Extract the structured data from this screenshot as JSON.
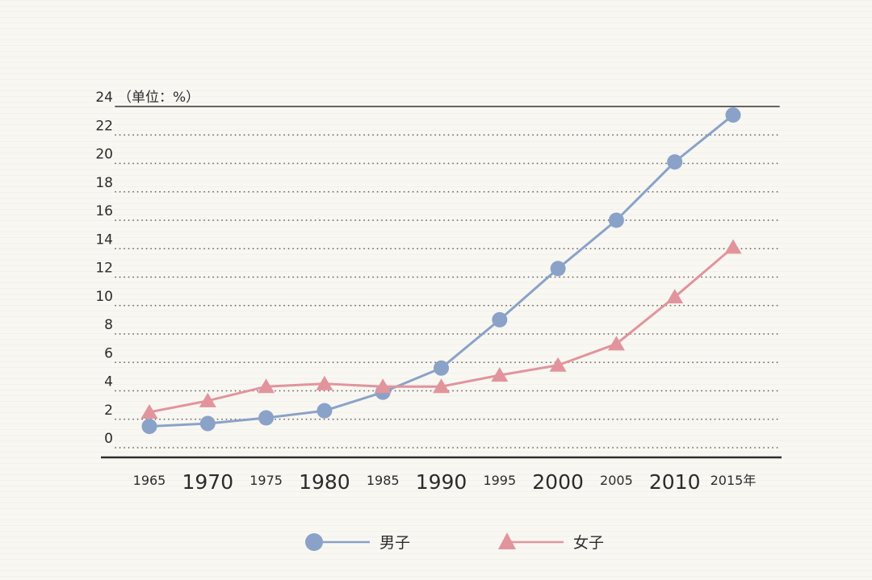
{
  "chart_data": {
    "type": "line",
    "title": "",
    "unit_label": "（单位：%）",
    "ylim": [
      0,
      24
    ],
    "y_tick_step": 2,
    "y_tick_labels": [
      "0",
      "2",
      "4",
      "6",
      "8",
      "10",
      "12",
      "14",
      "16",
      "18",
      "20",
      "22",
      "24"
    ],
    "categories": [
      "1965",
      "1970",
      "1975",
      "1980",
      "1985",
      "1990",
      "1995",
      "2000",
      "2005",
      "2010",
      "2015年"
    ],
    "series": [
      {
        "name": "男子",
        "marker": "circle",
        "color": "#8aa2c8",
        "values": [
          1.5,
          1.7,
          2.1,
          2.6,
          3.9,
          5.6,
          9.0,
          12.6,
          16.0,
          20.1,
          23.4
        ]
      },
      {
        "name": "女子",
        "marker": "triangle",
        "color": "#e2949c",
        "values": [
          2.5,
          3.3,
          4.3,
          4.5,
          4.3,
          4.3,
          5.1,
          5.8,
          7.3,
          10.6,
          14.1
        ]
      }
    ],
    "grid": "dotted-horizontal",
    "legend_position": "bottom-center",
    "colors": {
      "axis": "#2e2e2e",
      "gridline": "#3f3f3f",
      "text": "#2b2b2b"
    }
  }
}
